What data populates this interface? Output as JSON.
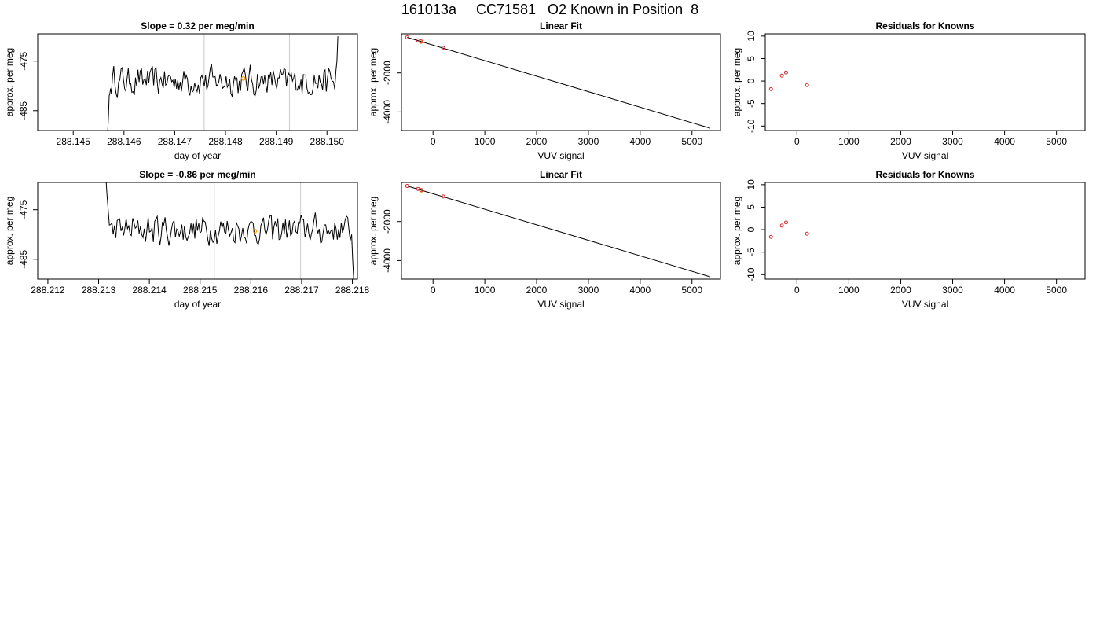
{
  "page_title": "161013a     CC71581   O2 Known in Position  8",
  "colors": {
    "line": "#000000",
    "known_point": "#d62728",
    "highlight_point": "#ff9900",
    "vertical_guide": "#cccccc"
  },
  "chart_data": [
    {
      "id": "ts1",
      "type": "line",
      "title": "Slope =  0.32  per meg/min",
      "xlabel": "day of year",
      "ylabel": "approx. per meg",
      "xlim": [
        288.1443,
        288.1506
      ],
      "ylim": [
        -489,
        -469.5
      ],
      "xticks": [
        288.145,
        288.146,
        288.147,
        288.148,
        288.149,
        288.15
      ],
      "xtick_labels": [
        "288.145",
        "288.146",
        "288.147",
        "288.148",
        "288.149",
        "288.150"
      ],
      "yticks": [
        -485,
        -475
      ],
      "ytick_labels": [
        "-485",
        "-475"
      ],
      "vlines": [
        288.14758,
        288.14926
      ],
      "trace": {
        "x_start": 288.14568,
        "x_end": 288.1502,
        "pre": [
          -489,
          -486,
          -482,
          -481.5,
          -480.5
        ],
        "post": [
          -477,
          -475,
          -470
        ]
      },
      "highlight": {
        "x": 288.14835,
        "y": -478.5
      }
    },
    {
      "id": "fit1",
      "type": "line",
      "title": "Linear Fit",
      "xlabel": "VUV signal",
      "ylabel": "approx. per meg",
      "xlim": [
        -610,
        5550
      ],
      "ylim": [
        -4950,
        0
      ],
      "xticks": [
        0,
        1000,
        2000,
        3000,
        4000,
        5000
      ],
      "xtick_labels": [
        "0",
        "1000",
        "2000",
        "3000",
        "4000",
        "5000"
      ],
      "yticks": [
        -4000,
        -2000
      ],
      "ytick_labels": [
        "-4000",
        "-2000"
      ],
      "line": {
        "x": [
          -500,
          5350
        ],
        "y": [
          -180,
          -4830
        ]
      },
      "points": [
        {
          "x": -500,
          "y": -180
        },
        {
          "x": -290,
          "y": -330
        },
        {
          "x": -230,
          "y": -385
        },
        {
          "x": 195,
          "y": -720
        }
      ],
      "highlight": {
        "x": -235,
        "y": -400
      }
    },
    {
      "id": "res1",
      "type": "scatter",
      "title": "Residuals for Knowns",
      "xlabel": "VUV signal",
      "ylabel": "approx. per meg",
      "xlim": [
        -610,
        5550
      ],
      "ylim": [
        -11,
        10.5
      ],
      "xticks": [
        0,
        1000,
        2000,
        3000,
        4000,
        5000
      ],
      "xtick_labels": [
        "0",
        "1000",
        "2000",
        "3000",
        "4000",
        "5000"
      ],
      "yticks": [
        -10,
        -5,
        0,
        5,
        10
      ],
      "ytick_labels": [
        "-10",
        "-5",
        "0",
        "5",
        "10"
      ],
      "points": [
        {
          "x": -500,
          "y": -1.8
        },
        {
          "x": -290,
          "y": 1.2
        },
        {
          "x": -210,
          "y": 1.9
        },
        {
          "x": 195,
          "y": -0.9
        }
      ]
    },
    {
      "id": "ts2",
      "type": "line",
      "title": "Slope =  -0.86  per meg/min",
      "xlabel": "day of year",
      "ylabel": "approx. per meg",
      "xlim": [
        288.2118,
        288.2181
      ],
      "ylim": [
        -489,
        -469.5
      ],
      "xticks": [
        288.212,
        288.213,
        288.214,
        288.215,
        288.216,
        288.217,
        288.218
      ],
      "xtick_labels": [
        "288.212",
        "288.213",
        "288.214",
        "288.215",
        "288.216",
        "288.217",
        "288.218"
      ],
      "yticks": [
        -485,
        -475
      ],
      "ytick_labels": [
        "-485",
        "-475"
      ],
      "vlines": [
        288.21528,
        288.21698
      ],
      "trace": {
        "x_start": 288.21315,
        "x_end": 288.218,
        "pre": [
          -469.5,
          -472,
          -474,
          -476
        ],
        "post": [
          -480,
          -485,
          -489
        ]
      },
      "highlight": {
        "x": 288.21608,
        "y": -479.3
      }
    },
    {
      "id": "fit2",
      "type": "line",
      "title": "Linear Fit",
      "xlabel": "VUV signal",
      "ylabel": "approx. per meg",
      "xlim": [
        -610,
        5550
      ],
      "ylim": [
        -4950,
        0
      ],
      "xticks": [
        0,
        1000,
        2000,
        3000,
        4000,
        5000
      ],
      "xtick_labels": [
        "0",
        "1000",
        "2000",
        "3000",
        "4000",
        "5000"
      ],
      "yticks": [
        -4000,
        -2000
      ],
      "ytick_labels": [
        "-4000",
        "-2000"
      ],
      "line": {
        "x": [
          -500,
          5350
        ],
        "y": [
          -180,
          -4830
        ]
      },
      "points": [
        {
          "x": -500,
          "y": -180
        },
        {
          "x": -290,
          "y": -330
        },
        {
          "x": -230,
          "y": -390
        },
        {
          "x": 195,
          "y": -720
        }
      ],
      "highlight": {
        "x": -225,
        "y": -405
      }
    },
    {
      "id": "res2",
      "type": "scatter",
      "title": "Residuals for Knowns",
      "xlabel": "VUV signal",
      "ylabel": "approx. per meg",
      "xlim": [
        -610,
        5550
      ],
      "ylim": [
        -11,
        10.5
      ],
      "xticks": [
        0,
        1000,
        2000,
        3000,
        4000,
        5000
      ],
      "xtick_labels": [
        "0",
        "1000",
        "2000",
        "3000",
        "4000",
        "5000"
      ],
      "yticks": [
        -10,
        -5,
        0,
        5,
        10
      ],
      "ytick_labels": [
        "-10",
        "-5",
        "0",
        "5",
        "10"
      ],
      "points": [
        {
          "x": -500,
          "y": -1.6
        },
        {
          "x": -290,
          "y": 0.9
        },
        {
          "x": -210,
          "y": 1.6
        },
        {
          "x": 195,
          "y": -0.9
        }
      ]
    }
  ]
}
